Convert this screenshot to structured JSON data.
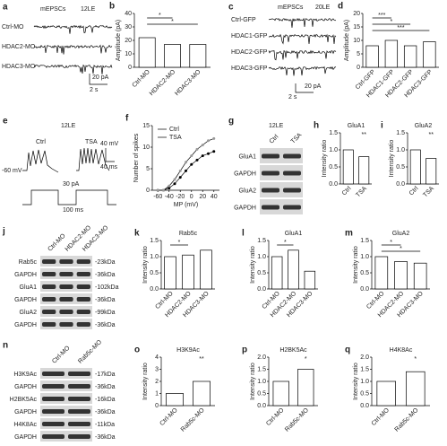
{
  "panels": {
    "a": {
      "letter": "a",
      "title": "mEPSCs",
      "condition": "12LE",
      "traces": [
        "Ctrl-MO",
        "HDAC2-MO",
        "HDAC3-MO"
      ],
      "scale_y": "20 pA",
      "scale_x": "2 s"
    },
    "c": {
      "letter": "c",
      "title": "mEPSCs",
      "condition": "20LE",
      "traces": [
        "Ctrl-GFP",
        "HDAC1-GFP",
        "HDAC2-GFP",
        "HDAC3-GFP"
      ],
      "scale_y": "20 pA",
      "scale_x": "2 s"
    },
    "e": {
      "letter": "e",
      "condition": "12LE",
      "traces": [
        "Ctrl",
        "TSA"
      ],
      "holding": "-60 mV",
      "scale_v": "40 mV",
      "scale_t": "40 ms",
      "step": "30 pA",
      "step_t": "100 ms"
    },
    "g": {
      "letter": "g",
      "condition": "12LE",
      "lanes": [
        "Ctrl",
        "TSA"
      ],
      "rows": [
        "GluA1",
        "GAPDH",
        "GluA2",
        "GAPDH"
      ]
    },
    "j": {
      "letter": "j",
      "lanes": [
        "Ctrl-MO",
        "HDAC2-MO",
        "HDAC3-MO"
      ],
      "rows": [
        "Rab5c",
        "GAPDH",
        "GluA1",
        "GAPDH",
        "GluA2",
        "GAPDH"
      ],
      "sizes": [
        "-23kDa",
        "-36kDa",
        "-102kDa",
        "-36kDa",
        "-99kDa",
        "-36kDa"
      ]
    },
    "n": {
      "letter": "n",
      "lanes": [
        "Ctrl-MO",
        "Rab5c-MO"
      ],
      "rows": [
        "H3K9Ac",
        "GAPDH",
        "H2BK5Ac",
        "GAPDH",
        "H4K8Ac",
        "GAPDH"
      ],
      "sizes": [
        "-17kDa",
        "-36kDa",
        "-16kDa",
        "-36kDa",
        "-11kDa",
        "-36kDa"
      ]
    }
  },
  "chart_data": [
    {
      "type": "bar",
      "panel": "b",
      "ylabel": "Amplitude (pA)",
      "categories": [
        "Ctrl-MO",
        "HDAC2-MO",
        "HDAC3-MO"
      ],
      "values": [
        22,
        17,
        17
      ],
      "color": "#ffffff",
      "ylim": [
        0,
        40
      ],
      "yticks": [
        0,
        10,
        20,
        30,
        40
      ],
      "annotations": [
        "*",
        "*"
      ]
    },
    {
      "type": "bar",
      "panel": "d",
      "ylabel": "Amplitude (pA)",
      "categories": [
        "Ctrl-GFP",
        "HDAC1-GFP",
        "HDAC2-GFP",
        "HDAC3-GFP"
      ],
      "values": [
        8,
        10,
        8,
        9.5
      ],
      "color": "#ffffff",
      "ylim": [
        0,
        20
      ],
      "yticks": [
        0,
        5,
        10,
        15,
        20
      ],
      "annotations": [
        "***",
        "*",
        "***"
      ]
    },
    {
      "type": "line",
      "panel": "f",
      "xlabel": "MP (mV)",
      "ylabel": "Number of spikes",
      "x": [
        -60,
        -50,
        -40,
        -30,
        -20,
        -10,
        0,
        10,
        20,
        30,
        40
      ],
      "series": [
        {
          "name": "Ctrl",
          "color": "#000000",
          "values": [
            0,
            0,
            0.5,
            1.5,
            3,
            4.5,
            6,
            7,
            8,
            8.5,
            9
          ]
        },
        {
          "name": "TSA",
          "color": "#999999",
          "values": [
            0,
            0,
            1,
            2.5,
            4.5,
            6.5,
            8,
            9.5,
            10.5,
            11.5,
            12
          ]
        }
      ],
      "xlim": [
        -70,
        50
      ],
      "xticks": [
        -60,
        -40,
        -20,
        0,
        20,
        40
      ],
      "ylim": [
        0,
        15
      ],
      "yticks": [
        0,
        5,
        10,
        15
      ]
    },
    {
      "type": "bar",
      "panel": "h",
      "title": "GluA1",
      "ylabel": "Intensity ratio",
      "categories": [
        "Ctrl",
        "TSA"
      ],
      "values": [
        1.0,
        0.8
      ],
      "color": "#ffffff",
      "ylim": [
        0,
        1.5
      ],
      "yticks": [
        {
          "value": 0,
          "label": "0.0"
        },
        0.5,
        {
          "value": 1,
          "label": "1.0"
        },
        1.5
      ],
      "annotations": [
        "**"
      ]
    },
    {
      "type": "bar",
      "panel": "i",
      "title": "GluA2",
      "ylabel": "Intensity ratio",
      "categories": [
        "Ctrl",
        "TSA"
      ],
      "values": [
        1.0,
        0.75
      ],
      "color": "#ffffff",
      "ylim": [
        0,
        1.5
      ],
      "yticks": [
        {
          "value": 0,
          "label": "0.0"
        },
        0.5,
        {
          "value": 1,
          "label": "1.0"
        },
        1.5
      ],
      "annotations": [
        "**"
      ]
    },
    {
      "type": "bar",
      "panel": "k",
      "title": "Rab5c",
      "ylabel": "Intensity ratio",
      "categories": [
        "Ctrl-MO",
        "HDAC2-MO",
        "HDAC3-MO"
      ],
      "values": [
        1.0,
        1.05,
        1.2
      ],
      "color": "#ffffff",
      "ylim": [
        0,
        1.5
      ],
      "yticks": [
        {
          "value": 0,
          "label": "0.0"
        },
        0.5,
        {
          "value": 1,
          "label": "1.0"
        },
        1.5
      ],
      "annotations": [
        "*"
      ]
    },
    {
      "type": "bar",
      "panel": "l",
      "title": "GluA1",
      "ylabel": "Intensity ratio",
      "categories": [
        "Ctrl-MO",
        "HDAC2-MO",
        "HDAC3-MO"
      ],
      "values": [
        1.0,
        1.2,
        0.55
      ],
      "color": "#ffffff",
      "ylim": [
        0,
        1.5
      ],
      "yticks": [
        {
          "value": 0,
          "label": "0.0"
        },
        0.5,
        {
          "value": 1,
          "label": "1.0"
        },
        1.5
      ],
      "annotations": [
        "*"
      ]
    },
    {
      "type": "bar",
      "panel": "m",
      "title": "GluA2",
      "ylabel": "Intensity ratio",
      "categories": [
        "Ctrl-MO",
        "HDAC2-MO",
        "HDAC3-MO"
      ],
      "values": [
        1.0,
        0.85,
        0.8
      ],
      "color": "#ffffff",
      "ylim": [
        0,
        1.5
      ],
      "yticks": [
        {
          "value": 0,
          "label": "0.0"
        },
        0.5,
        {
          "value": 1,
          "label": "1.0"
        },
        1.5
      ],
      "annotations": [
        "*",
        "*"
      ]
    },
    {
      "type": "bar",
      "panel": "o",
      "title": "H3K9Ac",
      "ylabel": "Intensity ratio",
      "categories": [
        "Ctrl-MO",
        "Rab5c-MO"
      ],
      "values": [
        1.0,
        2.0
      ],
      "color": "#ffffff",
      "ylim": [
        0,
        4
      ],
      "yticks": [
        0,
        1,
        2,
        3,
        4
      ],
      "annotations": [
        "**"
      ]
    },
    {
      "type": "bar",
      "panel": "p",
      "title": "H2BK5Ac",
      "ylabel": "Intensity ratio",
      "categories": [
        "Ctrl-MO",
        "Rab5c-MO"
      ],
      "values": [
        1.0,
        1.5
      ],
      "color": "#ffffff",
      "ylim": [
        0,
        2
      ],
      "yticks": [
        {
          "value": 0,
          "label": "0.0"
        },
        0.5,
        {
          "value": 1,
          "label": "1.0"
        },
        1.5,
        {
          "value": 2,
          "label": "2.0"
        }
      ],
      "annotations": [
        "*"
      ]
    },
    {
      "type": "bar",
      "panel": "q",
      "title": "H4K8Ac",
      "ylabel": "Intensity ratio",
      "categories": [
        "Ctrl-MO",
        "Rab5c-MO"
      ],
      "values": [
        1.0,
        1.4
      ],
      "color": "#ffffff",
      "ylim": [
        0,
        2
      ],
      "yticks": [
        {
          "value": 0,
          "label": "0.0"
        },
        0.5,
        {
          "value": 1,
          "label": "1.0"
        },
        1.5,
        {
          "value": 2,
          "label": "2.0"
        }
      ],
      "annotations": [
        "*"
      ]
    }
  ]
}
